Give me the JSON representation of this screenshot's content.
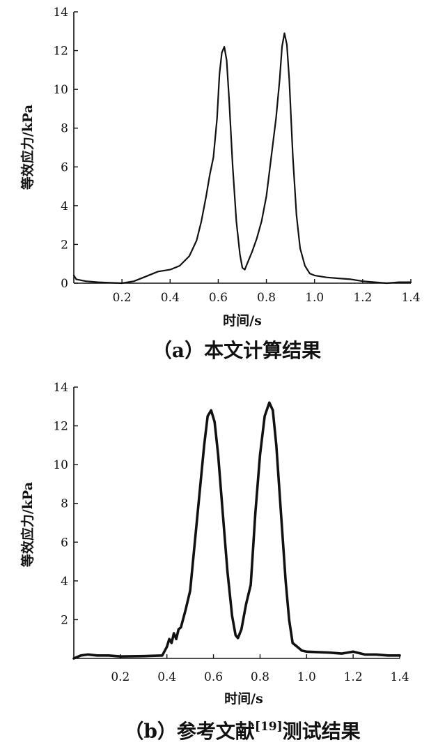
{
  "chart_data": [
    {
      "type": "line",
      "caption": "（a）本文计算结果",
      "xlabel": "时间/s",
      "ylabel": "等效应力/kPa",
      "xlim": [
        0,
        1.4
      ],
      "ylim": [
        0,
        14
      ],
      "x_ticks": [
        "0.2",
        "0.4",
        "0.6",
        "0.8",
        "1.0",
        "1.2",
        "1.4"
      ],
      "y_ticks": [
        "0",
        "2",
        "4",
        "6",
        "8",
        "10",
        "12",
        "14"
      ],
      "series": [
        {
          "stroke_width": 2.2,
          "points": [
            [
              0.0,
              0.4
            ],
            [
              0.01,
              0.2
            ],
            [
              0.05,
              0.1
            ],
            [
              0.1,
              0.05
            ],
            [
              0.15,
              0.02
            ],
            [
              0.2,
              0.0
            ],
            [
              0.25,
              0.1
            ],
            [
              0.3,
              0.35
            ],
            [
              0.35,
              0.6
            ],
            [
              0.4,
              0.7
            ],
            [
              0.44,
              0.9
            ],
            [
              0.48,
              1.4
            ],
            [
              0.51,
              2.2
            ],
            [
              0.53,
              3.2
            ],
            [
              0.55,
              4.5
            ],
            [
              0.565,
              5.6
            ],
            [
              0.58,
              6.5
            ],
            [
              0.595,
              8.5
            ],
            [
              0.605,
              10.8
            ],
            [
              0.615,
              11.9
            ],
            [
              0.625,
              12.2
            ],
            [
              0.635,
              11.5
            ],
            [
              0.645,
              9.5
            ],
            [
              0.66,
              6.0
            ],
            [
              0.675,
              3.2
            ],
            [
              0.69,
              1.5
            ],
            [
              0.7,
              0.8
            ],
            [
              0.71,
              0.7
            ],
            [
              0.72,
              1.0
            ],
            [
              0.74,
              1.6
            ],
            [
              0.76,
              2.3
            ],
            [
              0.78,
              3.2
            ],
            [
              0.8,
              4.5
            ],
            [
              0.82,
              6.5
            ],
            [
              0.84,
              8.5
            ],
            [
              0.855,
              10.5
            ],
            [
              0.865,
              12.2
            ],
            [
              0.875,
              12.9
            ],
            [
              0.885,
              12.3
            ],
            [
              0.895,
              10.5
            ],
            [
              0.91,
              6.5
            ],
            [
              0.925,
              3.5
            ],
            [
              0.94,
              1.8
            ],
            [
              0.96,
              0.9
            ],
            [
              0.98,
              0.5
            ],
            [
              1.0,
              0.4
            ],
            [
              1.05,
              0.3
            ],
            [
              1.1,
              0.25
            ],
            [
              1.15,
              0.2
            ],
            [
              1.2,
              0.1
            ],
            [
              1.25,
              0.05
            ],
            [
              1.3,
              0.0
            ],
            [
              1.35,
              0.05
            ],
            [
              1.4,
              0.05
            ]
          ]
        }
      ]
    },
    {
      "type": "line",
      "caption": "（b）参考文献",
      "caption_superscript": "[19]",
      "caption_suffix": "测试结果",
      "xlabel": "时间/s",
      "ylabel": "等效应力/kPa",
      "xlim": [
        0,
        1.4
      ],
      "ylim": [
        0,
        14
      ],
      "x_ticks": [
        "0.2",
        "0.4",
        "0.6",
        "0.8",
        "1.0",
        "1.2",
        "1.4"
      ],
      "y_ticks": [
        "2",
        "4",
        "6",
        "8",
        "10",
        "12",
        "14"
      ],
      "series": [
        {
          "stroke_width": 3.6,
          "points": [
            [
              0.0,
              0.0
            ],
            [
              0.03,
              0.15
            ],
            [
              0.06,
              0.2
            ],
            [
              0.1,
              0.15
            ],
            [
              0.15,
              0.15
            ],
            [
              0.2,
              0.1
            ],
            [
              0.3,
              0.12
            ],
            [
              0.38,
              0.15
            ],
            [
              0.4,
              0.6
            ],
            [
              0.41,
              1.0
            ],
            [
              0.42,
              0.8
            ],
            [
              0.43,
              1.3
            ],
            [
              0.44,
              1.0
            ],
            [
              0.45,
              1.5
            ],
            [
              0.46,
              1.6
            ],
            [
              0.48,
              2.5
            ],
            [
              0.5,
              3.5
            ],
            [
              0.52,
              6.0
            ],
            [
              0.54,
              8.5
            ],
            [
              0.56,
              11.0
            ],
            [
              0.575,
              12.5
            ],
            [
              0.59,
              12.8
            ],
            [
              0.605,
              12.2
            ],
            [
              0.62,
              10.5
            ],
            [
              0.64,
              7.5
            ],
            [
              0.66,
              4.5
            ],
            [
              0.68,
              2.2
            ],
            [
              0.695,
              1.2
            ],
            [
              0.705,
              1.05
            ],
            [
              0.72,
              1.5
            ],
            [
              0.74,
              2.8
            ],
            [
              0.76,
              3.8
            ],
            [
              0.78,
              7.5
            ],
            [
              0.8,
              10.5
            ],
            [
              0.82,
              12.5
            ],
            [
              0.84,
              13.2
            ],
            [
              0.855,
              12.8
            ],
            [
              0.87,
              11.0
            ],
            [
              0.89,
              7.5
            ],
            [
              0.91,
              4.0
            ],
            [
              0.925,
              2.0
            ],
            [
              0.94,
              0.8
            ],
            [
              0.96,
              0.6
            ],
            [
              0.98,
              0.4
            ],
            [
              1.0,
              0.35
            ],
            [
              1.1,
              0.3
            ],
            [
              1.15,
              0.25
            ],
            [
              1.2,
              0.35
            ],
            [
              1.25,
              0.2
            ],
            [
              1.3,
              0.2
            ],
            [
              1.35,
              0.15
            ],
            [
              1.4,
              0.15
            ]
          ]
        }
      ]
    }
  ]
}
